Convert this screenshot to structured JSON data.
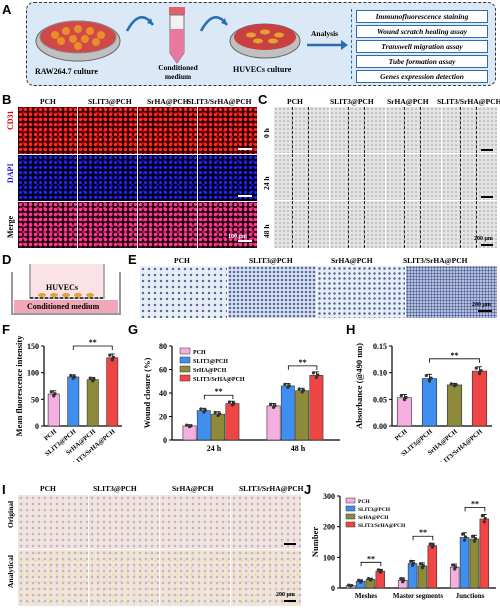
{
  "panels": {
    "A": "A",
    "B": "B",
    "C": "C",
    "D": "D",
    "E": "E",
    "F": "F",
    "G": "G",
    "H": "H",
    "I": "I",
    "J": "J"
  },
  "panelA": {
    "raw_label": "RAW264.7 culture",
    "medium_label": "Conditioned medium",
    "huvec_label": "HUVECs culture",
    "analysis_label": "Analysis",
    "assays": [
      "Immunofluorescence staining",
      "Wound scratch healing assay",
      "Transwell migration assay",
      "Tube formation assay",
      "Genes expression detection"
    ]
  },
  "groups": [
    "PCH",
    "SLIT3@PCH",
    "SrHA@PCH",
    "SLIT3/SrHA@PCH"
  ],
  "panelB": {
    "rows": [
      "CD31",
      "DAPI",
      "Merge"
    ],
    "scale": "100 μm"
  },
  "panelC": {
    "rows": [
      "0 h",
      "24 h",
      "48 h"
    ],
    "scale": "200 μm"
  },
  "panelD": {
    "huvecs": "HUVECs",
    "medium": "Conditioned medium"
  },
  "panelE": {
    "scale": "200 μm"
  },
  "panelI": {
    "rows": [
      "Original",
      "Analytical"
    ],
    "scale": "200 μm"
  },
  "chart_data": [
    {
      "panel": "F",
      "type": "bar",
      "ylabel": "Mean fluorescence intensity",
      "ylim": [
        0,
        150
      ],
      "yticks": [
        0,
        50,
        100,
        150
      ],
      "categories": [
        "PCH",
        "SLIT3@PCH",
        "SrHA@PCH",
        "SLIT3/SrHA@PCH"
      ],
      "values": [
        60,
        92,
        87,
        128
      ],
      "errors": [
        6,
        4,
        4,
        7
      ],
      "colors": [
        "#f4aee0",
        "#3f8ff0",
        "#8d8a3a",
        "#f04545"
      ],
      "annotations": [
        "**"
      ]
    },
    {
      "panel": "G",
      "type": "bar",
      "ylabel": "Wound closure (%)",
      "ylim": [
        0,
        80
      ],
      "yticks": [
        0,
        20,
        40,
        60,
        80
      ],
      "categories": [
        "24 h",
        "48 h"
      ],
      "series": [
        {
          "name": "PCH",
          "values": [
            12,
            29
          ],
          "errors": [
            1,
            2
          ]
        },
        {
          "name": "SLIT3@PCH",
          "values": [
            25,
            46
          ],
          "errors": [
            2,
            2
          ]
        },
        {
          "name": "SrHA@PCH",
          "values": [
            22,
            42
          ],
          "errors": [
            2,
            2
          ]
        },
        {
          "name": "SLIT3/SrHA@PCH",
          "values": [
            31,
            55
          ],
          "errors": [
            2,
            3
          ]
        }
      ],
      "colors": [
        "#f4aee0",
        "#3f8ff0",
        "#8d8a3a",
        "#f04545"
      ],
      "annotations": [
        "**",
        "**"
      ]
    },
    {
      "panel": "H",
      "type": "bar",
      "ylabel": "Absorbance (@490 nm)",
      "ylim": [
        0,
        0.15
      ],
      "yticks": [
        0.0,
        0.05,
        0.1,
        0.15
      ],
      "categories": [
        "PCH",
        "SLIT3@PCH",
        "SrHA@PCH",
        "SLIT3/SrHA@PCH"
      ],
      "values": [
        0.053,
        0.089,
        0.077,
        0.103
      ],
      "errors": [
        0.006,
        0.008,
        0.003,
        0.008
      ],
      "colors": [
        "#f4aee0",
        "#3f8ff0",
        "#8d8a3a",
        "#f04545"
      ],
      "annotations": [
        "**"
      ]
    },
    {
      "panel": "J",
      "type": "bar",
      "ylabel": "Number",
      "ylim": [
        0,
        300
      ],
      "yticks": [
        0,
        100,
        200,
        300
      ],
      "categories": [
        "Meshes",
        "Master segments",
        "Junctions"
      ],
      "series": [
        {
          "name": "PCH",
          "values": [
            8,
            25,
            68
          ],
          "errors": [
            2,
            8,
            10
          ]
        },
        {
          "name": "SLIT3@PCH",
          "values": [
            22,
            80,
            165
          ],
          "errors": [
            5,
            10,
            15
          ]
        },
        {
          "name": "SrHA@PCH",
          "values": [
            28,
            72,
            160
          ],
          "errors": [
            4,
            10,
            12
          ]
        },
        {
          "name": "SLIT3/SrHA@PCH",
          "values": [
            55,
            138,
            225
          ],
          "errors": [
            6,
            8,
            15
          ]
        }
      ],
      "colors": [
        "#f4aee0",
        "#3f8ff0",
        "#8d8a3a",
        "#f04545"
      ],
      "annotations": [
        "**",
        "**",
        "**"
      ]
    }
  ]
}
